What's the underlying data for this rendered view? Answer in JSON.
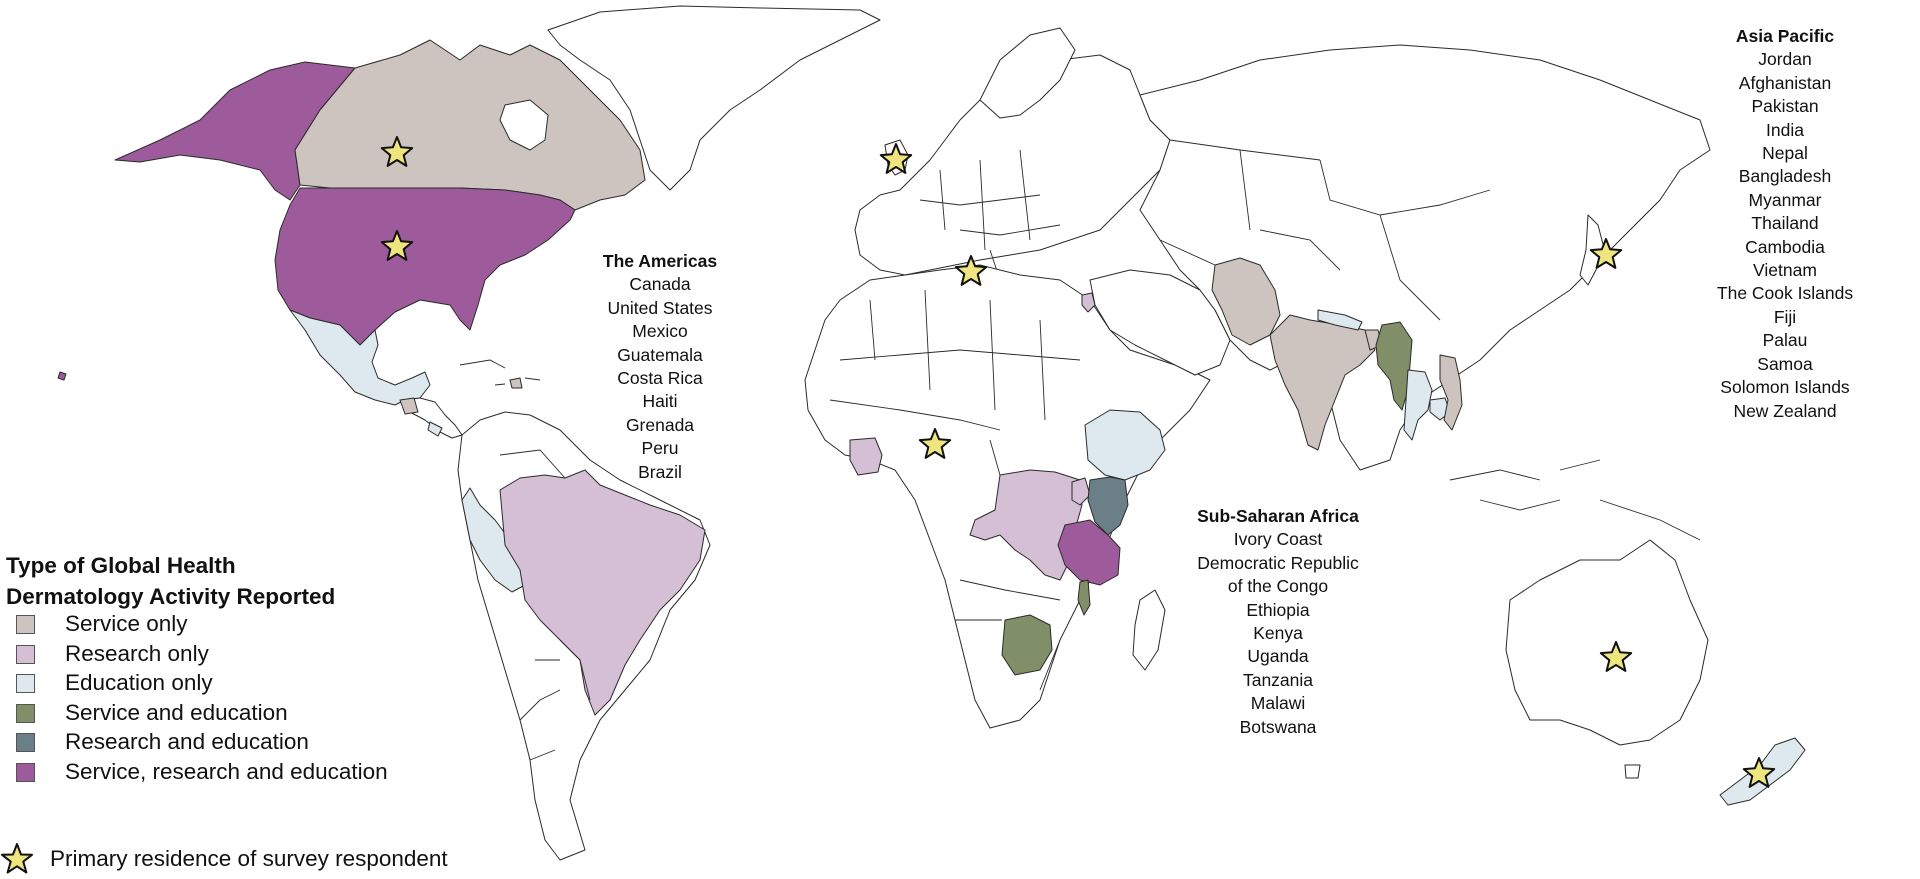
{
  "colors": {
    "service_only": "#cdc4bf",
    "research_only": "#d5bfd5",
    "education_only": "#dde9ee",
    "service_and_education": "#808f67",
    "research_and_education": "#6b7f89",
    "service_research_education": "#9d5b9c",
    "star_fill": "#efe57f",
    "land": "#ffffff",
    "border": "#2a2a2a"
  },
  "legend": {
    "title_line1": "Type of Global Health",
    "title_line2": "Dermatology Activity Reported",
    "items": [
      {
        "label": "Service only",
        "color_key": "service_only"
      },
      {
        "label": "Research only",
        "color_key": "research_only"
      },
      {
        "label": "Education only",
        "color_key": "education_only"
      },
      {
        "label": "Service and education",
        "color_key": "service_and_education"
      },
      {
        "label": "Research and education",
        "color_key": "research_and_education"
      },
      {
        "label": "Service, research and education",
        "color_key": "service_research_education"
      }
    ],
    "star_label": "Primary residence of survey respondent",
    "star_icon": "star-icon"
  },
  "regions": {
    "americas": {
      "title": "The Americas",
      "countries": [
        "Canada",
        "United States",
        "Mexico",
        "Guatemala",
        "Costa Rica",
        "Haiti",
        "Grenada",
        "Peru",
        "Brazil"
      ]
    },
    "africa": {
      "title": "Sub-Saharan Africa",
      "countries": [
        "Ivory Coast",
        "Democratic Republic",
        "of the Congo",
        "Ethiopia",
        "Kenya",
        "Uganda",
        "Tanzania",
        "Malawi",
        "Botswana"
      ]
    },
    "asia_pacific": {
      "title": "Asia Pacific",
      "countries": [
        "Jordan",
        "Afghanistan",
        "Pakistan",
        "India",
        "Nepal",
        "Bangladesh",
        "Myanmar",
        "Thailand",
        "Cambodia",
        "Vietnam",
        "The Cook Islands",
        "Fiji",
        "Palau",
        "Samoa",
        "Solomon Islands",
        "New Zealand"
      ]
    }
  },
  "respondent_locations": [
    "Canada",
    "United States",
    "United Kingdom",
    "Italy",
    "Nigeria",
    "Japan",
    "Australia",
    "New Zealand"
  ]
}
